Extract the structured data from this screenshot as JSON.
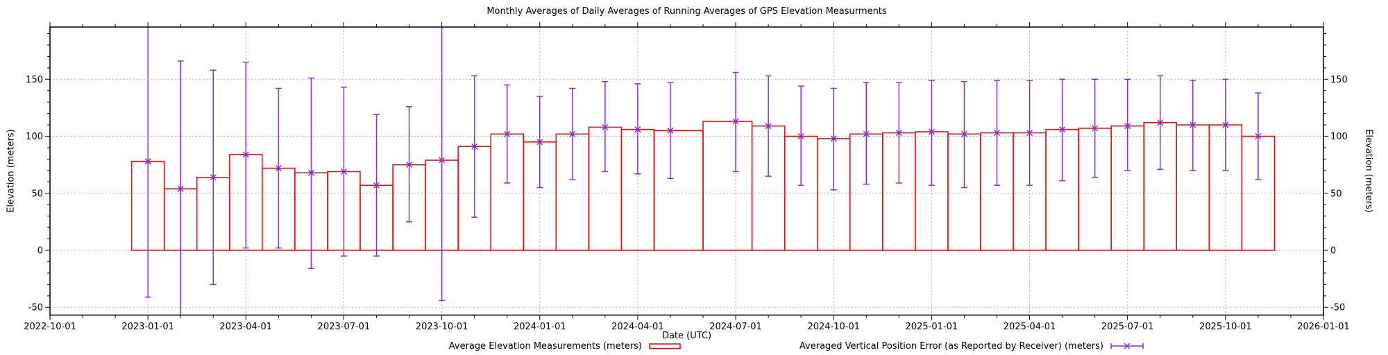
{
  "chart_data": {
    "type": "bar",
    "title": "Monthly Averages of Daily Averages of Running Averages of GPS Elevation Measurments",
    "xlabel": "Date (UTC)",
    "ylabel_left": "Elevation (meters)",
    "ylabel_right": "Elevation (meters)",
    "colors": {
      "bars": "#ff0000",
      "errorbars": "#8a2be2",
      "grid": "#b0b0b0",
      "axis": "#000000",
      "background": "#ffffff"
    },
    "x_axis": {
      "major_tick_labels": [
        "2022-10-01",
        "2023-01-01",
        "2023-04-01",
        "2023-07-01",
        "2023-10-01",
        "2024-01-01",
        "2024-04-01",
        "2024-07-01",
        "2024-10-01",
        "2025-01-01",
        "2025-04-01",
        "2025-07-01",
        "2025-10-01",
        "2026-01-01"
      ],
      "months_per_major_tick": 3,
      "minor_ticks": "monthly"
    },
    "y_axis": {
      "tick_values": [
        -50,
        0,
        50,
        100,
        150
      ],
      "minor_tick_interval": 10,
      "range": [
        -56.6,
        195.8
      ]
    },
    "grid": {
      "horizontal": true,
      "vertical": true,
      "style": "dotted"
    },
    "legend": [
      {
        "label": "Average Elevation Measurements (meters)",
        "sample": "red-box"
      },
      {
        "label": "Averaged Vertical Position Error (as Reported by Receiver) (meters)",
        "sample": "purple-errorbar"
      }
    ],
    "series": [
      {
        "name": "Average Elevation Measurements (meters)",
        "style": "boxes",
        "color": "#ff0000"
      },
      {
        "name": "Averaged Vertical Position Error (as Reported by Receiver) (meters)",
        "style": "yerrorbars",
        "color": "#8a2be2"
      }
    ],
    "missing_months": [
      "2024-06"
    ],
    "points": [
      {
        "month": "2023-01",
        "value": 78,
        "err_low": -41,
        "err_high": 197
      },
      {
        "month": "2023-02",
        "value": 54,
        "err_low": -59,
        "err_high": 166
      },
      {
        "month": "2023-03",
        "value": 64,
        "err_low": -30,
        "err_high": 158
      },
      {
        "month": "2023-04",
        "value": 84,
        "err_low": 2,
        "err_high": 165
      },
      {
        "month": "2023-05",
        "value": 72,
        "err_low": 2,
        "err_high": 142
      },
      {
        "month": "2023-06",
        "value": 68,
        "err_low": -16,
        "err_high": 151
      },
      {
        "month": "2023-07",
        "value": 69,
        "err_low": -5,
        "err_high": 143
      },
      {
        "month": "2023-08",
        "value": 57,
        "err_low": -5,
        "err_high": 119
      },
      {
        "month": "2023-09",
        "value": 75,
        "err_low": 25,
        "err_high": 126
      },
      {
        "month": "2023-10",
        "value": 79,
        "err_low": -44,
        "err_high": 202
      },
      {
        "month": "2023-11",
        "value": 91,
        "err_low": 29,
        "err_high": 153
      },
      {
        "month": "2023-12",
        "value": 102,
        "err_low": 59,
        "err_high": 145
      },
      {
        "month": "2024-01",
        "value": 95,
        "err_low": 55,
        "err_high": 135
      },
      {
        "month": "2024-02",
        "value": 102,
        "err_low": 62,
        "err_high": 142
      },
      {
        "month": "2024-03",
        "value": 108,
        "err_low": 69,
        "err_high": 148
      },
      {
        "month": "2024-04",
        "value": 106,
        "err_low": 67,
        "err_high": 146
      },
      {
        "month": "2024-05",
        "value": 105,
        "err_low": 63,
        "err_high": 147
      },
      {
        "month": "2024-07",
        "value": 113,
        "err_low": 69,
        "err_high": 156
      },
      {
        "month": "2024-08",
        "value": 109,
        "err_low": 65,
        "err_high": 153
      },
      {
        "month": "2024-09",
        "value": 100,
        "err_low": 57,
        "err_high": 144
      },
      {
        "month": "2024-10",
        "value": 98,
        "err_low": 53,
        "err_high": 142
      },
      {
        "month": "2024-11",
        "value": 102,
        "err_low": 58,
        "err_high": 147
      },
      {
        "month": "2024-12",
        "value": 103,
        "err_low": 59,
        "err_high": 147
      },
      {
        "month": "2025-01",
        "value": 104,
        "err_low": 57,
        "err_high": 149
      },
      {
        "month": "2025-02",
        "value": 102,
        "err_low": 55,
        "err_high": 148
      },
      {
        "month": "2025-03",
        "value": 103,
        "err_low": 57,
        "err_high": 149
      },
      {
        "month": "2025-04",
        "value": 103,
        "err_low": 57,
        "err_high": 149
      },
      {
        "month": "2025-05",
        "value": 106,
        "err_low": 61,
        "err_high": 150
      },
      {
        "month": "2025-06",
        "value": 107,
        "err_low": 64,
        "err_high": 150
      },
      {
        "month": "2025-07",
        "value": 109,
        "err_low": 70,
        "err_high": 150
      },
      {
        "month": "2025-08",
        "value": 112,
        "err_low": 71,
        "err_high": 153
      },
      {
        "month": "2025-09",
        "value": 110,
        "err_low": 70,
        "err_high": 149
      },
      {
        "month": "2025-10",
        "value": 110,
        "err_low": 70,
        "err_high": 150
      },
      {
        "month": "2025-11",
        "value": 100,
        "err_low": 62,
        "err_high": 138
      }
    ]
  }
}
